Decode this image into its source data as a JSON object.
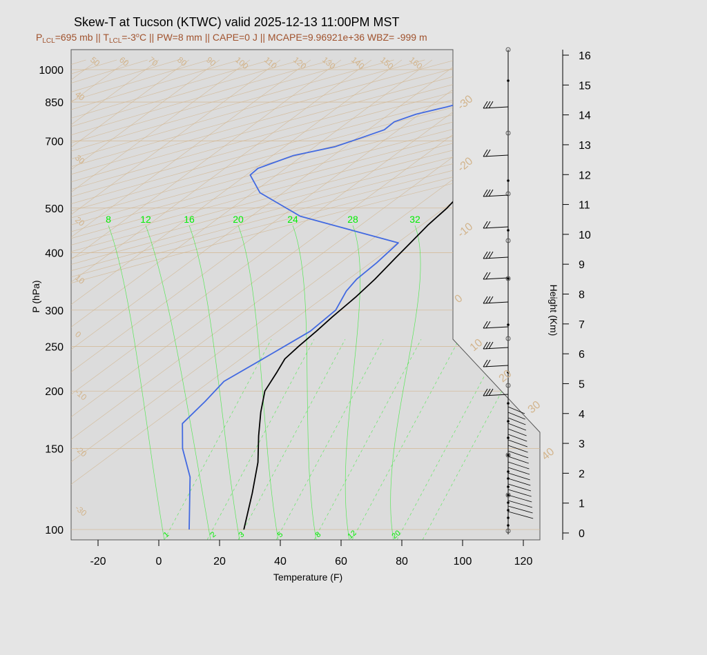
{
  "title": "Skew-T at Tucson (KTWC) valid 2025-12-13 11:00PM MST",
  "subtitle": {
    "plcl_label": "P",
    "plcl_sub": "LCL",
    "plcl_value": "=695 mb || T",
    "tlcl_sub": "LCL",
    "tlcl_value": "=-3",
    "deg": "o",
    "rest": "C || PW=8 mm || CAPE=0 J || MCAPE=9.96921e+36 WBZ= -999 m"
  },
  "colors": {
    "background": "#e5e5e5",
    "panel": "#dcdcdc",
    "temperature": "#000000",
    "dewpoint": "#4169e1",
    "isotherm": "#d2b48c",
    "mixing_ratio": "#00ee00"
  },
  "chart_data": {
    "type": "line",
    "xlabel": "Temperature (F)",
    "ylabel": "P (hPa)",
    "y2label": "Height (Km)",
    "xlim": [
      -28,
      96
    ],
    "ylim": [
      1050,
      100
    ],
    "yscale": "log",
    "x_ticks": [
      -20,
      0,
      20,
      40,
      60,
      80,
      100,
      120
    ],
    "y_ticks": [
      100,
      150,
      200,
      250,
      300,
      400,
      500,
      700,
      850,
      1000
    ],
    "height_ticks": [
      0,
      1,
      2,
      3,
      4,
      5,
      6,
      7,
      8,
      9,
      10,
      11,
      12,
      13,
      14,
      15,
      16
    ],
    "skew_isotherm_labels": [
      -30,
      -20,
      -10,
      0,
      10,
      20,
      30,
      40,
      50,
      60,
      70,
      80,
      90,
      100,
      110,
      120,
      130,
      140,
      150,
      160
    ],
    "wind_speed_labels": [
      -30,
      -20,
      -10,
      0,
      10,
      20,
      30,
      40
    ],
    "mixing_ratio_labels_top": [
      8,
      12,
      16,
      20,
      24,
      28,
      32
    ],
    "mixing_ratio_labels_bottom": [
      1,
      2,
      3,
      5,
      8,
      12,
      20
    ],
    "series": [
      {
        "name": "Temperature",
        "pressure": [
          930,
          920,
          915,
          905,
          880,
          860,
          830,
          780,
          730,
          690,
          640,
          600,
          560,
          500,
          460,
          420,
          390,
          350,
          320,
          290,
          270,
          250,
          235,
          220,
          200,
          180,
          160,
          140,
          120,
          100
        ],
        "temp_f": [
          77,
          75.5,
          72.5,
          74,
          77.5,
          76,
          72,
          65.5,
          59.5,
          55.5,
          52.5,
          50.5,
          47.5,
          44,
          40.5,
          37.5,
          35,
          31.5,
          28,
          23.5,
          20.5,
          17,
          14.5,
          14,
          13,
          15,
          18,
          22,
          25,
          28
        ]
      },
      {
        "name": "Dewpoint",
        "pressure": [
          900,
          860,
          830,
          800,
          770,
          740,
          710,
          680,
          650,
          610,
          590,
          540,
          480,
          420,
          380,
          350,
          330,
          300,
          270,
          240,
          210,
          190,
          170,
          150,
          130,
          100
        ],
        "temp_f": [
          38,
          35.5,
          28,
          19,
          13,
          11,
          4.5,
          -2.5,
          -15,
          -24.5,
          -26,
          -20,
          -3,
          33.5,
          29.5,
          25.5,
          24,
          23.5,
          18.5,
          9,
          -2,
          -5,
          -9,
          -5,
          2,
          10
        ]
      }
    ]
  }
}
